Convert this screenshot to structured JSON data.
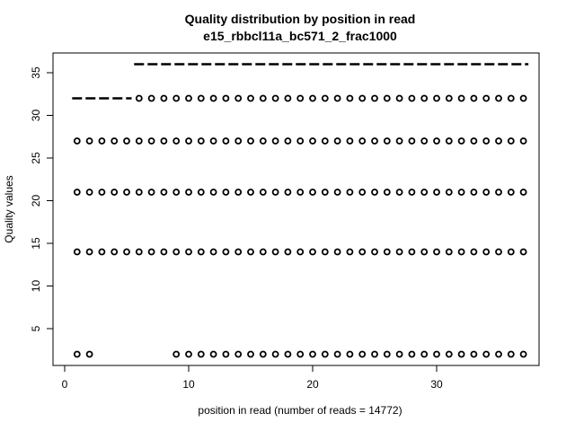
{
  "chart_data": {
    "type": "scatter",
    "title": "Quality distribution by position in read",
    "subtitle": "e15_rbbcl11a_bc571_2_frac1000",
    "xlabel": "position in read (number of reads = 14772)",
    "ylabel": "Quality values",
    "xlim": [
      0,
      37.5
    ],
    "ylim": [
      1,
      37.5
    ],
    "xticks": [
      0,
      10,
      20,
      30
    ],
    "yticks": [
      5,
      10,
      15,
      20,
      25,
      30,
      35
    ],
    "grid": false,
    "series": [
      {
        "y": 2,
        "x": [
          1,
          2,
          9,
          10,
          11,
          12,
          13,
          14,
          15,
          16,
          17,
          18,
          19,
          20,
          21,
          22,
          23,
          24,
          25,
          26,
          27,
          28,
          29,
          30,
          31,
          32,
          33,
          34,
          35,
          36,
          37
        ]
      },
      {
        "y": 14,
        "x": [
          1,
          2,
          3,
          4,
          5,
          6,
          7,
          8,
          9,
          10,
          11,
          12,
          13,
          14,
          15,
          16,
          17,
          18,
          19,
          20,
          21,
          22,
          23,
          24,
          25,
          26,
          27,
          28,
          29,
          30,
          31,
          32,
          33,
          34,
          35,
          36,
          37
        ]
      },
      {
        "y": 21,
        "x": [
          1,
          2,
          3,
          4,
          5,
          6,
          7,
          8,
          9,
          10,
          11,
          12,
          13,
          14,
          15,
          16,
          17,
          18,
          19,
          20,
          21,
          22,
          23,
          24,
          25,
          26,
          27,
          28,
          29,
          30,
          31,
          32,
          33,
          34,
          35,
          36,
          37
        ]
      },
      {
        "y": 27,
        "x": [
          1,
          2,
          3,
          4,
          5,
          6,
          7,
          8,
          9,
          10,
          11,
          12,
          13,
          14,
          15,
          16,
          17,
          18,
          19,
          20,
          21,
          22,
          23,
          24,
          25,
          26,
          27,
          28,
          29,
          30,
          31,
          32,
          33,
          34,
          35,
          36,
          37
        ]
      },
      {
        "y": 32,
        "x": [
          6,
          7,
          8,
          9,
          10,
          11,
          12,
          13,
          14,
          15,
          16,
          17,
          18,
          19,
          20,
          21,
          22,
          23,
          24,
          25,
          26,
          27,
          28,
          29,
          30,
          31,
          32,
          33,
          34,
          35,
          36,
          37
        ]
      }
    ],
    "dashed_lines": [
      {
        "y": 32,
        "x_from": 0.6,
        "x_to": 5.4
      },
      {
        "y": 36,
        "x_from": 5.6,
        "x_to": 37.4
      }
    ],
    "colors": {
      "points": "#000000",
      "lines": "#000000"
    }
  }
}
